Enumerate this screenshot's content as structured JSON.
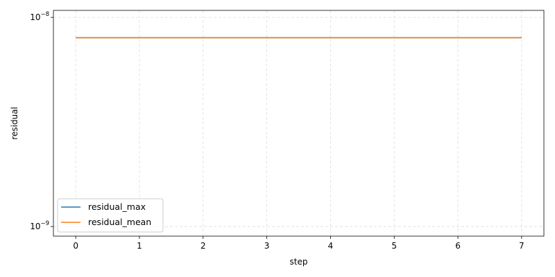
{
  "chart_data": {
    "type": "line",
    "xlabel": "step",
    "ylabel": "residual",
    "xlim": [
      -0.35,
      7.35
    ],
    "ylim": [
      9e-10,
      1.08e-08
    ],
    "yscale": "log",
    "grid": true,
    "legend_position": "lower-left",
    "x_ticks": [
      0,
      1,
      2,
      3,
      4,
      5,
      6,
      7
    ],
    "y_ticks": [
      {
        "value": 1e-09,
        "base": "10",
        "exp": "−9"
      },
      {
        "value": 1e-08,
        "base": "10",
        "exp": "−8"
      }
    ],
    "x": [
      0,
      1,
      2,
      3,
      4,
      5,
      6,
      7
    ],
    "series": [
      {
        "name": "residual_max",
        "color": "#1f77b4",
        "values": [
          8e-09,
          8e-09,
          8e-09,
          8e-09,
          8e-09,
          8e-09,
          8e-09,
          8e-09
        ]
      },
      {
        "name": "residual_mean",
        "color": "#ff7f0e",
        "values": [
          8e-09,
          8e-09,
          8e-09,
          8e-09,
          8e-09,
          8e-09,
          8e-09,
          8e-09
        ]
      }
    ]
  }
}
